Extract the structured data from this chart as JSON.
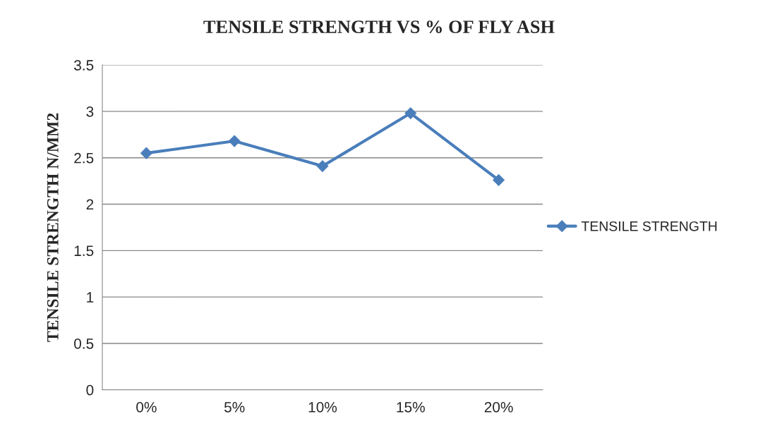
{
  "chart_data": {
    "type": "line",
    "title": "TENSILE STRENGTH VS % OF FLY ASH",
    "ylabel": "TENSILE STRENGTH N/MM2",
    "categories": [
      "0%",
      "5%",
      "10%",
      "15%",
      "20%"
    ],
    "series": [
      {
        "name": "TENSILE STRENGTH",
        "color": "#4a7ebb",
        "values": [
          2.55,
          2.68,
          2.41,
          2.98,
          2.26
        ]
      }
    ],
    "ylim": [
      0,
      3.5
    ],
    "yticks": [
      0,
      0.5,
      1,
      1.5,
      2,
      2.5,
      3,
      3.5
    ],
    "grid": "y",
    "legend": "right",
    "marker": "diamond",
    "line_style": "solid"
  }
}
